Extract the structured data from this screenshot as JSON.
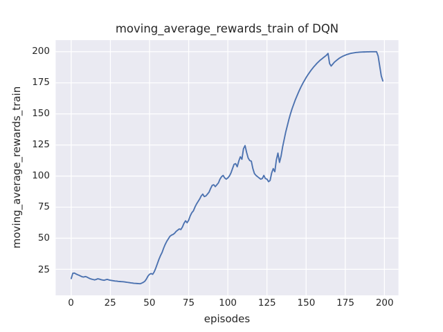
{
  "style": {
    "figure_bg": "#ffffff",
    "axes_bg": "#EAEAF2",
    "grid_color": "#ffffff",
    "text_color": "#262626",
    "line_color": "#4C72B0"
  },
  "chart_data": {
    "type": "line",
    "title": "moving_average_rewards_train of DQN",
    "xlabel": "episodes",
    "ylabel": "moving_average_rewards_train",
    "x_ticks": [
      0,
      25,
      50,
      75,
      100,
      125,
      150,
      175,
      200
    ],
    "y_ticks": [
      25,
      50,
      75,
      100,
      125,
      150,
      175,
      200
    ],
    "xlim": [
      -9.95,
      208.95
    ],
    "ylim": [
      4.07,
      209.33
    ],
    "grid": true,
    "legend": "none",
    "series": [
      {
        "name": "moving_average_rewards_train",
        "color": "#4C72B0",
        "x_start": 0,
        "x_step": 1,
        "n_points": 200,
        "y": [
          17.6,
          21.8,
          22.0,
          21.3,
          20.7,
          20.2,
          19.6,
          19.0,
          18.8,
          19.2,
          18.8,
          18.1,
          17.5,
          17.1,
          16.8,
          16.5,
          16.9,
          17.4,
          17.1,
          16.7,
          16.4,
          16.2,
          16.6,
          16.9,
          16.5,
          16.2,
          16.0,
          15.8,
          15.6,
          15.5,
          15.3,
          15.2,
          15.1,
          15.0,
          14.9,
          14.7,
          14.5,
          14.3,
          14.1,
          14.0,
          13.8,
          13.7,
          13.6,
          13.5,
          13.4,
          13.9,
          14.5,
          15.4,
          17.2,
          19.5,
          21.0,
          21.6,
          21.0,
          23.0,
          26.0,
          29.5,
          33.0,
          36.0,
          38.5,
          42.0,
          45.0,
          47.5,
          49.5,
          51.5,
          52.5,
          53.0,
          54.0,
          55.5,
          56.5,
          57.5,
          57.0,
          59.0,
          62.0,
          64.0,
          62.5,
          64.5,
          68.0,
          70.5,
          72.0,
          75.0,
          77.5,
          79.5,
          81.5,
          84.0,
          85.5,
          83.5,
          84.0,
          85.5,
          87.0,
          90.0,
          92.5,
          93.0,
          91.5,
          93.0,
          94.5,
          97.5,
          99.5,
          100.5,
          98.5,
          97.5,
          98.5,
          100.0,
          102.5,
          106.0,
          109.5,
          110.0,
          107.5,
          112.0,
          115.5,
          113.5,
          122.0,
          124.5,
          119.0,
          114.5,
          112.5,
          112.0,
          106.0,
          102.0,
          100.5,
          99.5,
          98.5,
          97.5,
          98.0,
          100.5,
          98.0,
          97.5,
          95.5,
          96.5,
          102.5,
          106.0,
          103.5,
          113.0,
          118.5,
          111.0,
          116.0,
          123.5,
          129.5,
          135.5,
          140.5,
          145.5,
          150.0,
          154.0,
          157.5,
          161.0,
          164.0,
          167.0,
          169.8,
          172.4,
          174.8,
          177.0,
          179.2,
          181.2,
          183.0,
          184.8,
          186.4,
          188.0,
          189.4,
          190.8,
          192.0,
          193.2,
          194.2,
          195.2,
          196.2,
          197.2,
          198.6,
          190.5,
          188.5,
          190.0,
          191.5,
          192.6,
          193.6,
          194.6,
          195.4,
          196.1,
          196.7,
          197.2,
          197.7,
          198.1,
          198.5,
          198.8,
          199.0,
          199.2,
          199.4,
          199.5,
          199.6,
          199.7,
          199.75,
          199.8,
          199.85,
          199.9,
          199.9,
          199.95,
          199.95,
          200.0,
          200.0,
          200.0,
          196.5,
          188.5,
          180.5,
          176.5
        ]
      }
    ]
  }
}
